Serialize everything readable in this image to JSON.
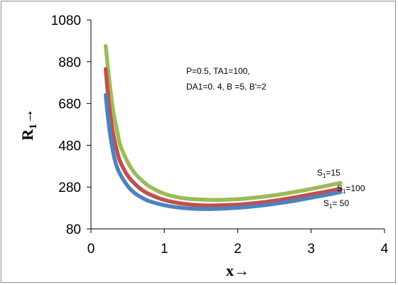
{
  "chart_data": {
    "type": "line",
    "xlabel": "x→",
    "ylabel_main": "R",
    "ylabel_sub": "1",
    "ylabel_arrow": "→",
    "xlim": [
      0,
      4
    ],
    "ylim": [
      80,
      1080
    ],
    "x_ticks": [
      "0",
      "1",
      "2",
      "3",
      "4"
    ],
    "y_ticks": [
      "80",
      "280",
      "480",
      "680",
      "880",
      "1080"
    ],
    "annotation": [
      "P=0.5,  TA1=100,",
      "DA1=0. 4,  B =5, B'=2"
    ],
    "series": [
      {
        "name": "S1=15",
        "label_prefix": "S",
        "label_sub": "1",
        "label_suffix": "=15",
        "color": "#9bbb59",
        "x": [
          0.2,
          0.25,
          0.3,
          0.35,
          0.4,
          0.5,
          0.6,
          0.7,
          0.8,
          1.0,
          1.2,
          1.4,
          1.6,
          1.8,
          2.0,
          2.2,
          2.4,
          2.6,
          2.8,
          3.0,
          3.2,
          3.4
        ],
        "y": [
          955,
          790,
          650,
          560,
          480,
          400,
          345,
          310,
          282,
          248,
          230,
          222,
          219,
          219,
          222,
          228,
          236,
          246,
          258,
          271,
          285,
          300
        ]
      },
      {
        "name": "S1=100",
        "label_prefix": "S",
        "label_sub": "1",
        "label_suffix": "=100",
        "color": "#c0504d",
        "x": [
          0.2,
          0.25,
          0.3,
          0.35,
          0.4,
          0.5,
          0.6,
          0.7,
          0.8,
          1.0,
          1.2,
          1.4,
          1.6,
          1.8,
          2.0,
          2.2,
          2.4,
          2.6,
          2.8,
          3.0,
          3.2,
          3.4
        ],
        "y": [
          845,
          660,
          540,
          460,
          400,
          335,
          295,
          265,
          245,
          218,
          203,
          195,
          192,
          193,
          196,
          202,
          210,
          220,
          232,
          245,
          258,
          272
        ]
      },
      {
        "name": "S1= 50",
        "label_prefix": "S",
        "label_sub": "1",
        "label_suffix": "= 50",
        "color": "#4f81bd",
        "x": [
          0.2,
          0.25,
          0.3,
          0.35,
          0.4,
          0.5,
          0.6,
          0.7,
          0.8,
          1.0,
          1.2,
          1.4,
          1.6,
          1.8,
          2.0,
          2.2,
          2.4,
          2.6,
          2.8,
          3.0,
          3.2,
          3.4
        ],
        "y": [
          720,
          560,
          450,
          380,
          340,
          285,
          250,
          228,
          212,
          193,
          182,
          176,
          175,
          177,
          181,
          187,
          195,
          205,
          216,
          229,
          242,
          256
        ]
      }
    ]
  }
}
